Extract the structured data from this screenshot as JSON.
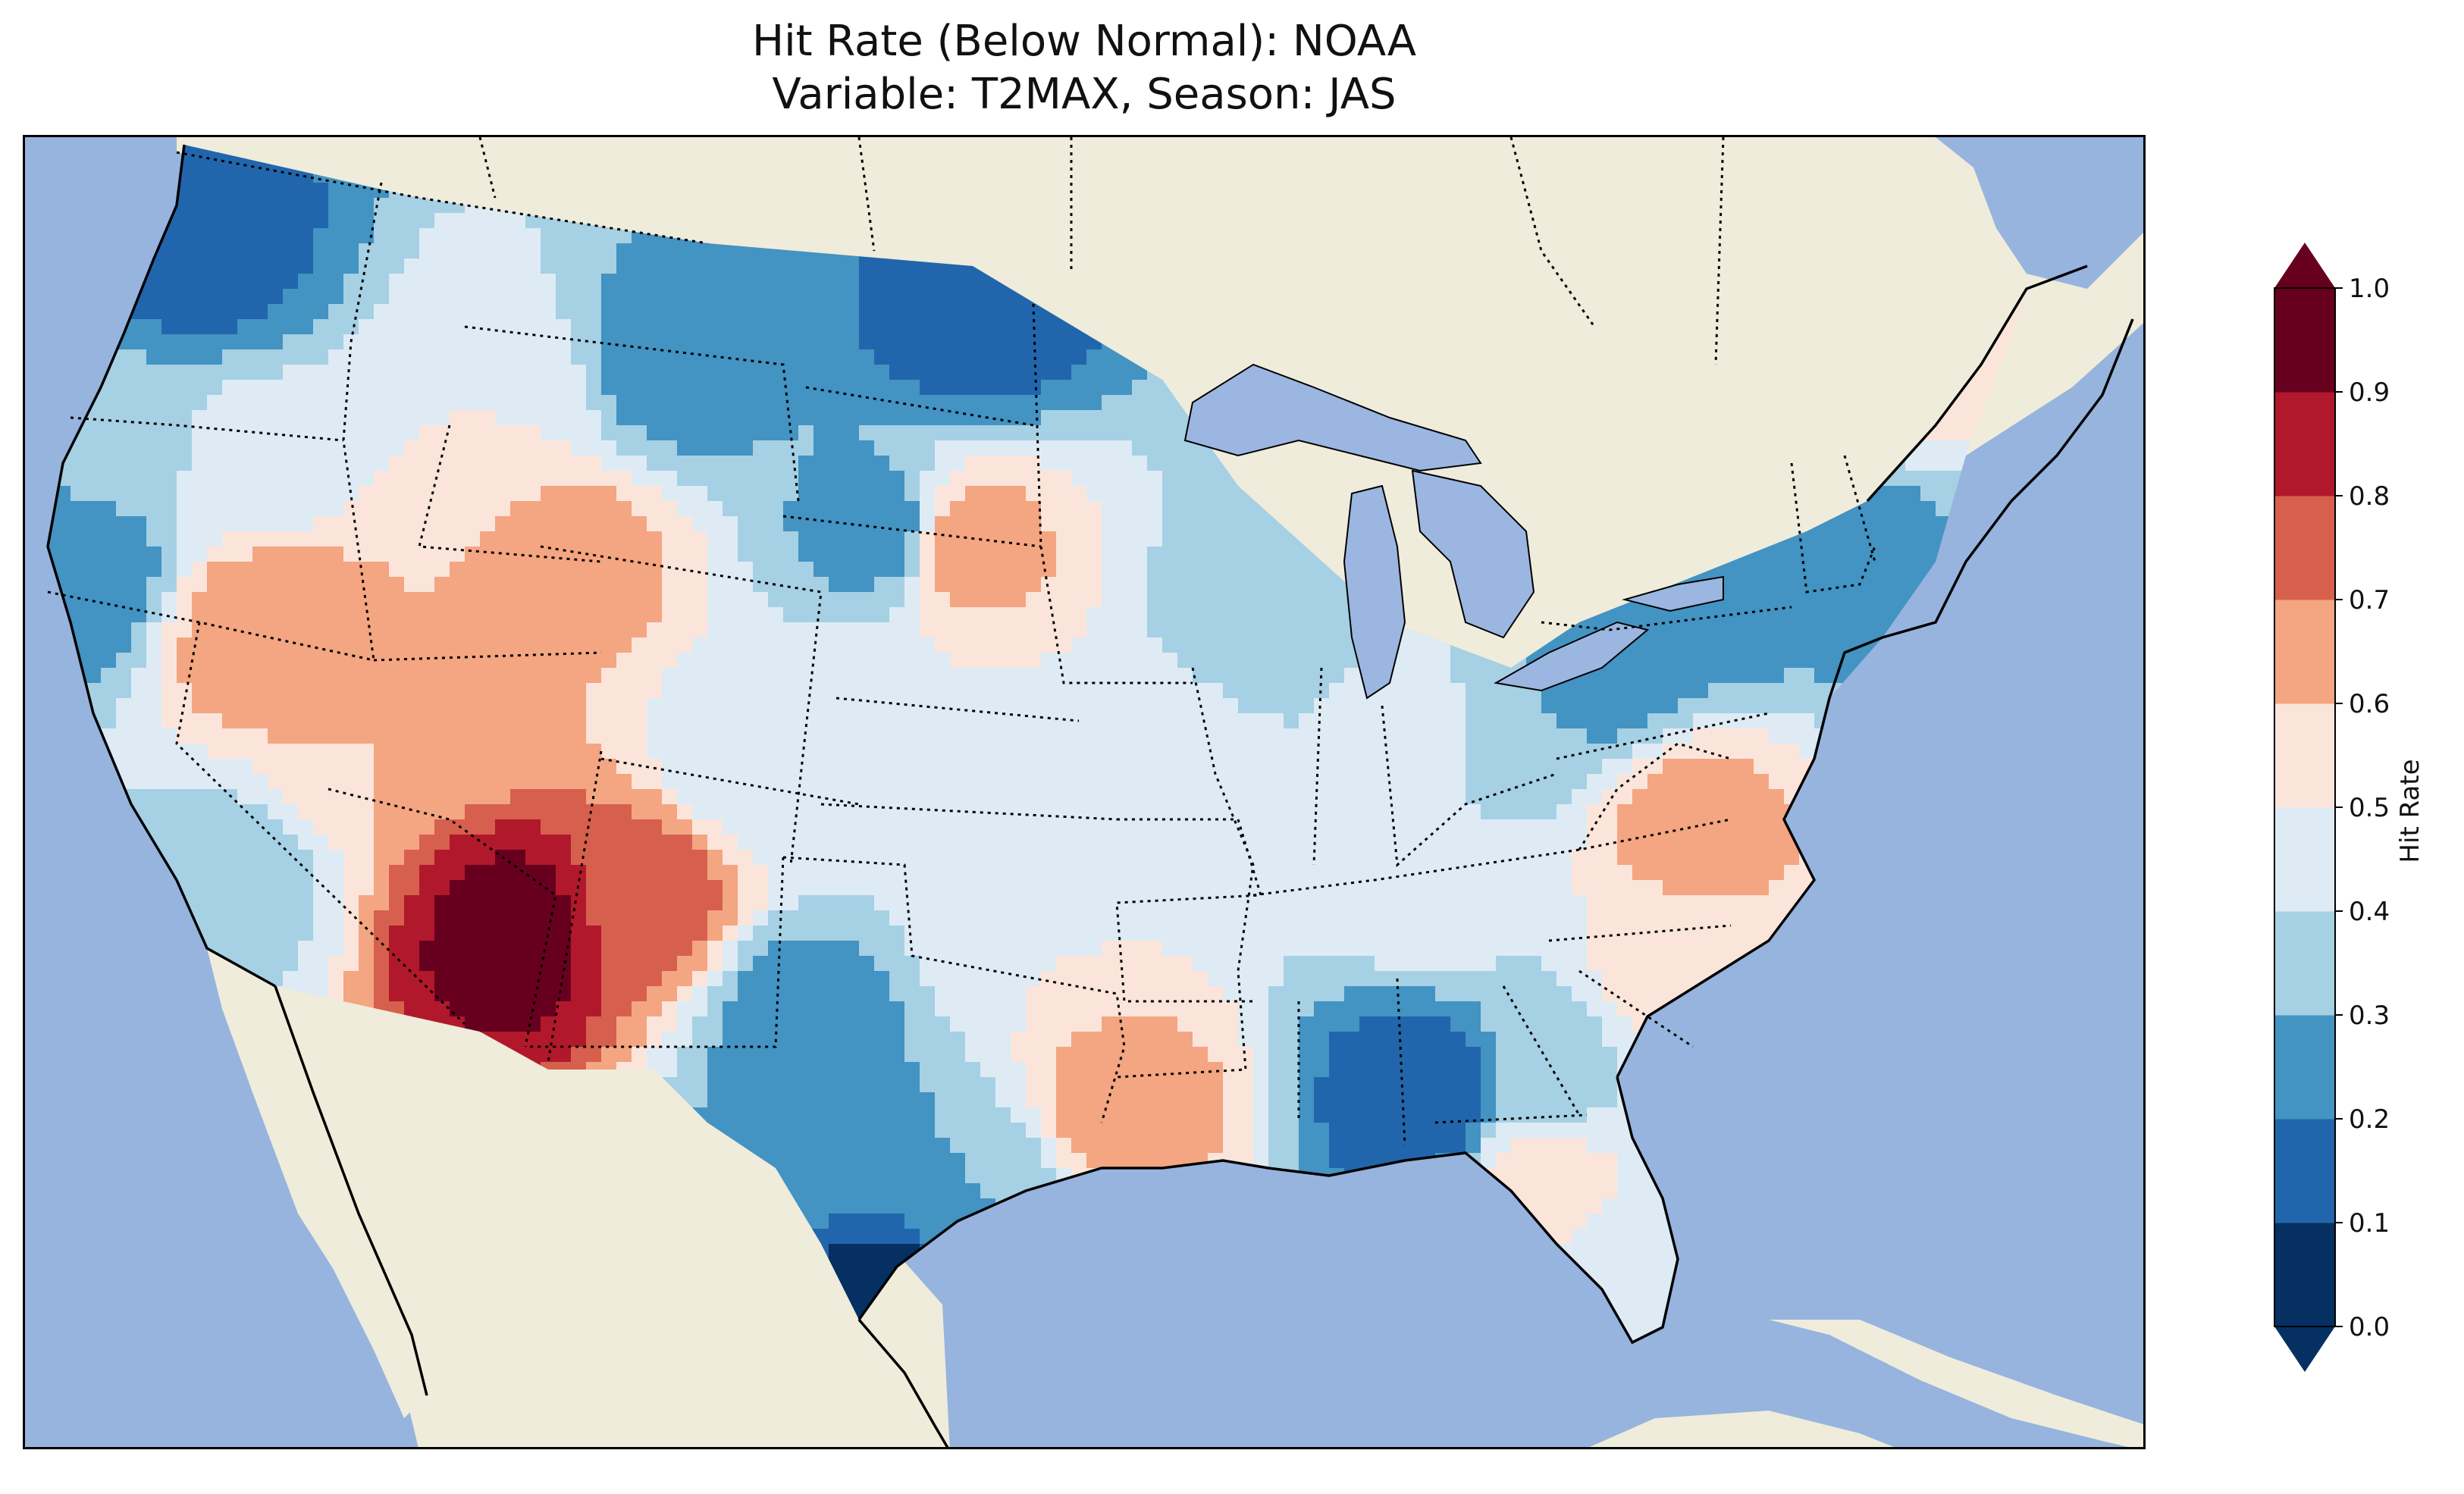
{
  "title": {
    "line1": "Hit Rate (Below Normal): NOAA",
    "line2": "Variable: T2MAX, Season: JAS"
  },
  "colors": {
    "ocean": "#96b4de",
    "land": "#efecdb",
    "lakes": "#9bb6e0"
  },
  "colorbar": {
    "label": "Hit Rate",
    "extend": "both",
    "ticks": [
      "0.0",
      "0.1",
      "0.2",
      "0.3",
      "0.4",
      "0.5",
      "0.6",
      "0.7",
      "0.8",
      "0.9",
      "1.0"
    ],
    "bins": [
      {
        "lo": 0.0,
        "hi": 0.1,
        "color": "#053061"
      },
      {
        "lo": 0.1,
        "hi": 0.2,
        "color": "#2166ac"
      },
      {
        "lo": 0.2,
        "hi": 0.3,
        "color": "#4393c3"
      },
      {
        "lo": 0.3,
        "hi": 0.4,
        "color": "#a6d0e4"
      },
      {
        "lo": 0.4,
        "hi": 0.5,
        "color": "#deebf5"
      },
      {
        "lo": 0.5,
        "hi": 0.6,
        "color": "#fbe5da"
      },
      {
        "lo": 0.6,
        "hi": 0.7,
        "color": "#f4a582"
      },
      {
        "lo": 0.7,
        "hi": 0.8,
        "color": "#d6604d"
      },
      {
        "lo": 0.8,
        "hi": 0.9,
        "color": "#b2182b"
      },
      {
        "lo": 0.9,
        "hi": 1.0,
        "color": "#67001f"
      }
    ]
  },
  "chart_data": {
    "type": "heatmap",
    "title": "Hit Rate (Below Normal): NOAA / Variable: T2MAX, Season: JAS",
    "variable": "T2MAX",
    "season": "JAS",
    "model": "NOAA",
    "region": "Contiguous United States",
    "value_range": [
      0.0,
      1.0
    ],
    "regional_values": [
      {
        "region": "Washington (Cascades/Puget)",
        "value": 0.15
      },
      {
        "region": "Oregon coast",
        "value": 0.35
      },
      {
        "region": "Northern California coast",
        "value": 0.2
      },
      {
        "region": "Oregon interior",
        "value": 0.45
      },
      {
        "region": "Idaho",
        "value": 0.5
      },
      {
        "region": "Nevada",
        "value": 0.6
      },
      {
        "region": "Northern Nevada",
        "value": 0.7
      },
      {
        "region": "Utah",
        "value": 0.6
      },
      {
        "region": "Southwest Wyoming",
        "value": 0.65
      },
      {
        "region": "Montana",
        "value": 0.25
      },
      {
        "region": "North Dakota / Minnesota border",
        "value": 0.15
      },
      {
        "region": "Western South Dakota",
        "value": 0.25
      },
      {
        "region": "Eastern South Dakota",
        "value": 0.65
      },
      {
        "region": "Nebraska",
        "value": 0.5
      },
      {
        "region": "Colorado",
        "value": 0.4
      },
      {
        "region": "Northern Arizona",
        "value": 0.95
      },
      {
        "region": "Arizona / New Mexico",
        "value": 0.75
      },
      {
        "region": "Southern California",
        "value": 0.35
      },
      {
        "region": "Eastern New Mexico",
        "value": 0.25
      },
      {
        "region": "Oklahoma",
        "value": 0.5
      },
      {
        "region": "West Texas",
        "value": 0.25
      },
      {
        "region": "South Texas",
        "value": 0.05
      },
      {
        "region": "Central Texas",
        "value": 0.3
      },
      {
        "region": "East Texas / Louisiana",
        "value": 0.65
      },
      {
        "region": "Kansas",
        "value": 0.45
      },
      {
        "region": "Missouri / Iowa",
        "value": 0.45
      },
      {
        "region": "Wisconsin",
        "value": 0.35
      },
      {
        "region": "Michigan",
        "value": 0.45
      },
      {
        "region": "Ohio / Indiana",
        "value": 0.3
      },
      {
        "region": "Pennsylvania",
        "value": 0.25
      },
      {
        "region": "New York",
        "value": 0.25
      },
      {
        "region": "New England",
        "value": 0.25
      },
      {
        "region": "Northern Maine",
        "value": 0.55
      },
      {
        "region": "Virginia / West Virginia",
        "value": 0.65
      },
      {
        "region": "Tennessee / Kentucky",
        "value": 0.45
      },
      {
        "region": "Carolinas",
        "value": 0.55
      },
      {
        "region": "Mississippi / Alabama",
        "value": 0.1
      },
      {
        "region": "Georgia",
        "value": 0.35
      },
      {
        "region": "Florida Panhandle",
        "value": 0.55
      },
      {
        "region": "South Florida",
        "value": 0.4
      }
    ]
  }
}
